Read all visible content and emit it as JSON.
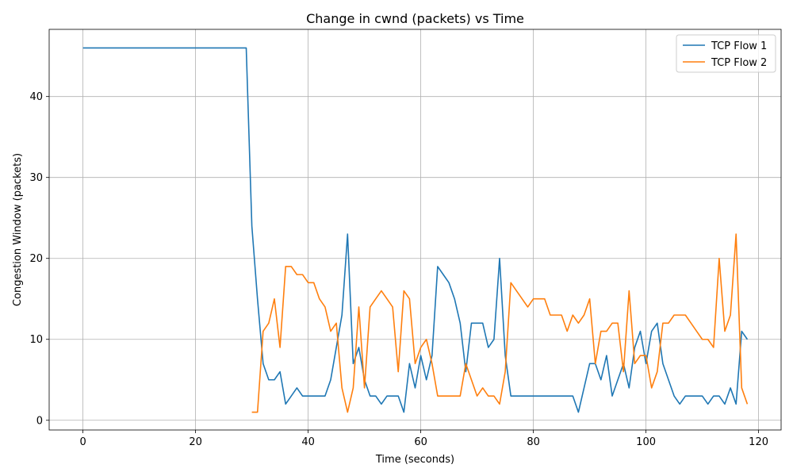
{
  "chart_data": {
    "type": "line",
    "title": "Change in cwnd (packets) vs Time",
    "xlabel": "Time (seconds)",
    "ylabel": "Congestion Window (packets)",
    "xlim": [
      -6,
      124
    ],
    "ylim": [
      -1.2,
      48.3
    ],
    "xticks": [
      0,
      20,
      40,
      60,
      80,
      100,
      120
    ],
    "yticks": [
      0,
      10,
      20,
      30,
      40
    ],
    "grid": true,
    "legend_position": "top-right",
    "series": [
      {
        "name": "TCP Flow 1",
        "color": "#1f77b4",
        "x": [
          0,
          1,
          2,
          3,
          4,
          5,
          6,
          7,
          8,
          9,
          10,
          11,
          12,
          13,
          14,
          15,
          16,
          17,
          18,
          19,
          20,
          21,
          22,
          23,
          24,
          25,
          26,
          27,
          28,
          29,
          30,
          31,
          32,
          33,
          34,
          35,
          36,
          37,
          38,
          39,
          40,
          41,
          42,
          43,
          44,
          45,
          46,
          47,
          48,
          49,
          50,
          51,
          52,
          53,
          54,
          55,
          56,
          57,
          58,
          59,
          60,
          61,
          62,
          63,
          64,
          65,
          66,
          67,
          68,
          69,
          70,
          71,
          72,
          73,
          74,
          75,
          76,
          77,
          78,
          79,
          80,
          81,
          82,
          83,
          84,
          85,
          86,
          87,
          88,
          89,
          90,
          91,
          92,
          93,
          94,
          95,
          96,
          97,
          98,
          99,
          100,
          101,
          102,
          103,
          104,
          105,
          106,
          107,
          108,
          109,
          110,
          111,
          112,
          113,
          114,
          115,
          116,
          117,
          118
        ],
        "y": [
          46,
          46,
          46,
          46,
          46,
          46,
          46,
          46,
          46,
          46,
          46,
          46,
          46,
          46,
          46,
          46,
          46,
          46,
          46,
          46,
          46,
          46,
          46,
          46,
          46,
          46,
          46,
          46,
          46,
          46,
          24,
          15,
          7,
          5,
          5,
          6,
          2,
          3,
          4,
          3,
          3,
          3,
          3,
          3,
          5,
          9,
          13,
          23,
          7,
          9,
          5,
          3,
          3,
          2,
          3,
          3,
          3,
          1,
          7,
          4,
          8,
          5,
          8,
          19,
          18,
          17,
          15,
          12,
          6,
          12,
          12,
          12,
          9,
          10,
          20,
          8,
          3,
          3,
          3,
          3,
          3,
          3,
          3,
          3,
          3,
          3,
          3,
          3,
          1,
          4,
          7,
          7,
          5,
          8,
          3,
          5,
          7,
          4,
          9,
          11,
          7,
          11,
          12,
          7,
          5,
          3,
          2,
          3,
          3,
          3,
          3,
          2,
          3,
          3,
          2,
          4,
          2,
          11,
          10
        ]
      },
      {
        "name": "TCP Flow 2",
        "color": "#ff7f0e",
        "x": [
          30,
          31,
          32,
          33,
          34,
          35,
          36,
          37,
          38,
          39,
          40,
          41,
          42,
          43,
          44,
          45,
          46,
          47,
          48,
          49,
          50,
          51,
          52,
          53,
          54,
          55,
          56,
          57,
          58,
          59,
          60,
          61,
          62,
          63,
          64,
          65,
          66,
          67,
          68,
          69,
          70,
          71,
          72,
          73,
          74,
          75,
          76,
          77,
          78,
          79,
          80,
          81,
          82,
          83,
          84,
          85,
          86,
          87,
          88,
          89,
          90,
          91,
          92,
          93,
          94,
          95,
          96,
          97,
          98,
          99,
          100,
          101,
          102,
          103,
          104,
          105,
          106,
          107,
          108,
          109,
          110,
          111,
          112,
          113,
          114,
          115,
          116,
          117,
          118
        ],
        "y": [
          1,
          1,
          11,
          12,
          15,
          9,
          19,
          19,
          18,
          18,
          17,
          17,
          15,
          14,
          11,
          12,
          4,
          1,
          4,
          14,
          4,
          14,
          15,
          16,
          15,
          14,
          6,
          16,
          15,
          7,
          9,
          10,
          7,
          3,
          3,
          3,
          3,
          3,
          7,
          5,
          3,
          4,
          3,
          3,
          2,
          6,
          17,
          16,
          15,
          14,
          15,
          15,
          15,
          13,
          13,
          13,
          11,
          13,
          12,
          13,
          15,
          7,
          11,
          11,
          12,
          12,
          6,
          16,
          7,
          8,
          8,
          4,
          6,
          12,
          12,
          13,
          13,
          13,
          12,
          11,
          10,
          10,
          9,
          20,
          11,
          13,
          23,
          4,
          2
        ]
      }
    ]
  }
}
